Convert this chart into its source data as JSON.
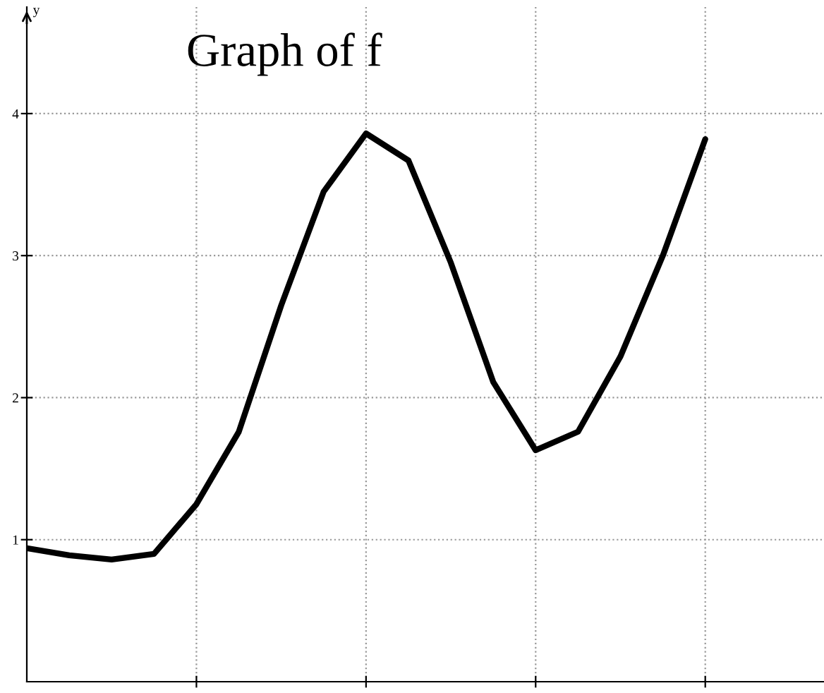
{
  "chart_data": {
    "type": "line",
    "title": "Graph of f",
    "ylabel": "y",
    "categories": [
      null,
      null,
      null,
      null,
      null,
      null,
      null,
      null,
      null,
      null,
      null,
      null,
      null,
      null,
      null,
      null,
      null
    ],
    "series": [
      {
        "color": "#000000",
        "values": [
          0.94,
          0.89,
          0.86,
          0.9,
          1.25,
          1.76,
          2.65,
          3.45,
          3.86,
          3.67,
          2.95,
          2.11,
          1.63,
          1.76,
          2.29,
          3.0,
          3.82
        ]
      }
    ],
    "ylim": [
      0,
      4.75
    ],
    "yticks": [
      1,
      2,
      3,
      4
    ],
    "grid": true,
    "line_style": "solid",
    "marker": "none"
  }
}
